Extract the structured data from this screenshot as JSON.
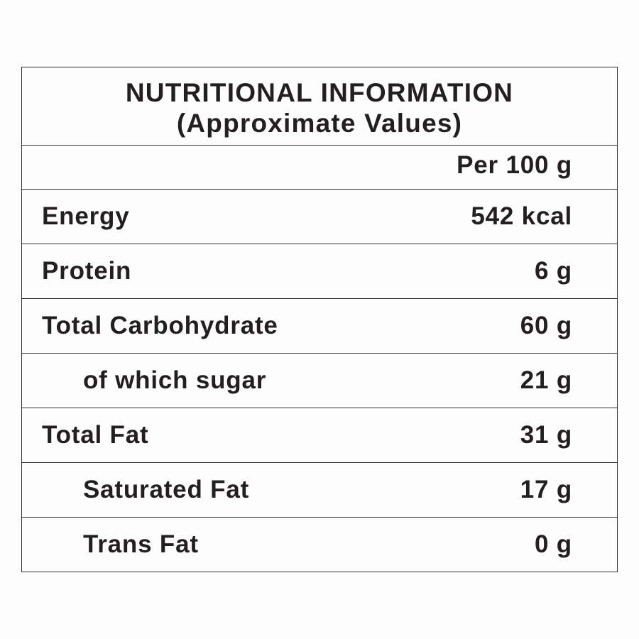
{
  "table": {
    "title": "NUTRITIONAL INFORMATION",
    "subtitle": "(Approximate Values)",
    "column_header": "Per 100 g",
    "rows": [
      {
        "label": "Energy",
        "value": "542 kcal"
      },
      {
        "label": "Protein",
        "value": "6 g"
      },
      {
        "label": "Total Carbohydrate",
        "value": "60 g",
        "sub": [
          {
            "label": "of which sugar",
            "value": "21 g"
          }
        ]
      },
      {
        "label": "Total Fat",
        "value": "31 g",
        "sub": [
          {
            "label": "Saturated Fat",
            "value": "17 g"
          },
          {
            "label": "Trans Fat",
            "value": "0 g"
          }
        ]
      }
    ]
  }
}
